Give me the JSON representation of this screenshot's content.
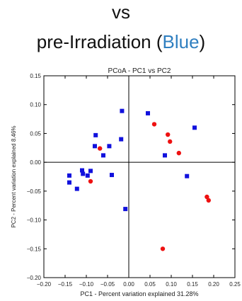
{
  "header": {
    "line1": "vs",
    "line2_prefix": "pre-Irradiation (",
    "line2_blue": "Blue",
    "line2_suffix": ")",
    "blue_color": "#2f7fc0"
  },
  "chart_data": {
    "type": "scatter",
    "title": "PCoA - PC1 vs PC2",
    "xlabel": "PC1 - Percent variation explained 31.28%",
    "ylabel": "PC2 - Percent variation explained 8.46%",
    "xlim": [
      -0.2,
      0.25
    ],
    "ylim": [
      -0.2,
      0.15
    ],
    "xticks": [
      "−0.20",
      "−0.15",
      "−0.10",
      "−0.05",
      "0.00",
      "0.05",
      "0.10",
      "0.15",
      "0.20",
      "0.25"
    ],
    "yticks": [
      "0.15",
      "0.10",
      "0.05",
      "0.00",
      "−0.05",
      "−0.10",
      "−0.15",
      "−0.20"
    ],
    "grid": false,
    "zero_lines": true,
    "series": [
      {
        "color": "#ee1111",
        "marker": "circle",
        "points": [
          [
            -0.068,
            0.024
          ],
          [
            -0.09,
            -0.033
          ],
          [
            0.06,
            0.066
          ],
          [
            0.092,
            0.048
          ],
          [
            0.097,
            0.036
          ],
          [
            0.118,
            0.016
          ],
          [
            0.184,
            -0.06
          ],
          [
            0.188,
            -0.066
          ],
          [
            0.08,
            -0.15
          ]
        ]
      },
      {
        "color": "#1111dd",
        "marker": "square",
        "points": [
          [
            -0.14,
            -0.023
          ],
          [
            -0.14,
            -0.035
          ],
          [
            -0.122,
            -0.046
          ],
          [
            -0.11,
            -0.014
          ],
          [
            -0.108,
            -0.02
          ],
          [
            -0.097,
            -0.023
          ],
          [
            -0.09,
            -0.015
          ],
          [
            -0.08,
            0.028
          ],
          [
            -0.078,
            0.047
          ],
          [
            -0.06,
            0.012
          ],
          [
            -0.046,
            0.028
          ],
          [
            -0.04,
            -0.022
          ],
          [
            -0.018,
            0.04
          ],
          [
            -0.016,
            0.089
          ],
          [
            -0.008,
            -0.081
          ],
          [
            0.045,
            0.085
          ],
          [
            0.085,
            0.012
          ],
          [
            0.137,
            -0.024
          ],
          [
            0.155,
            0.06
          ]
        ]
      }
    ]
  }
}
